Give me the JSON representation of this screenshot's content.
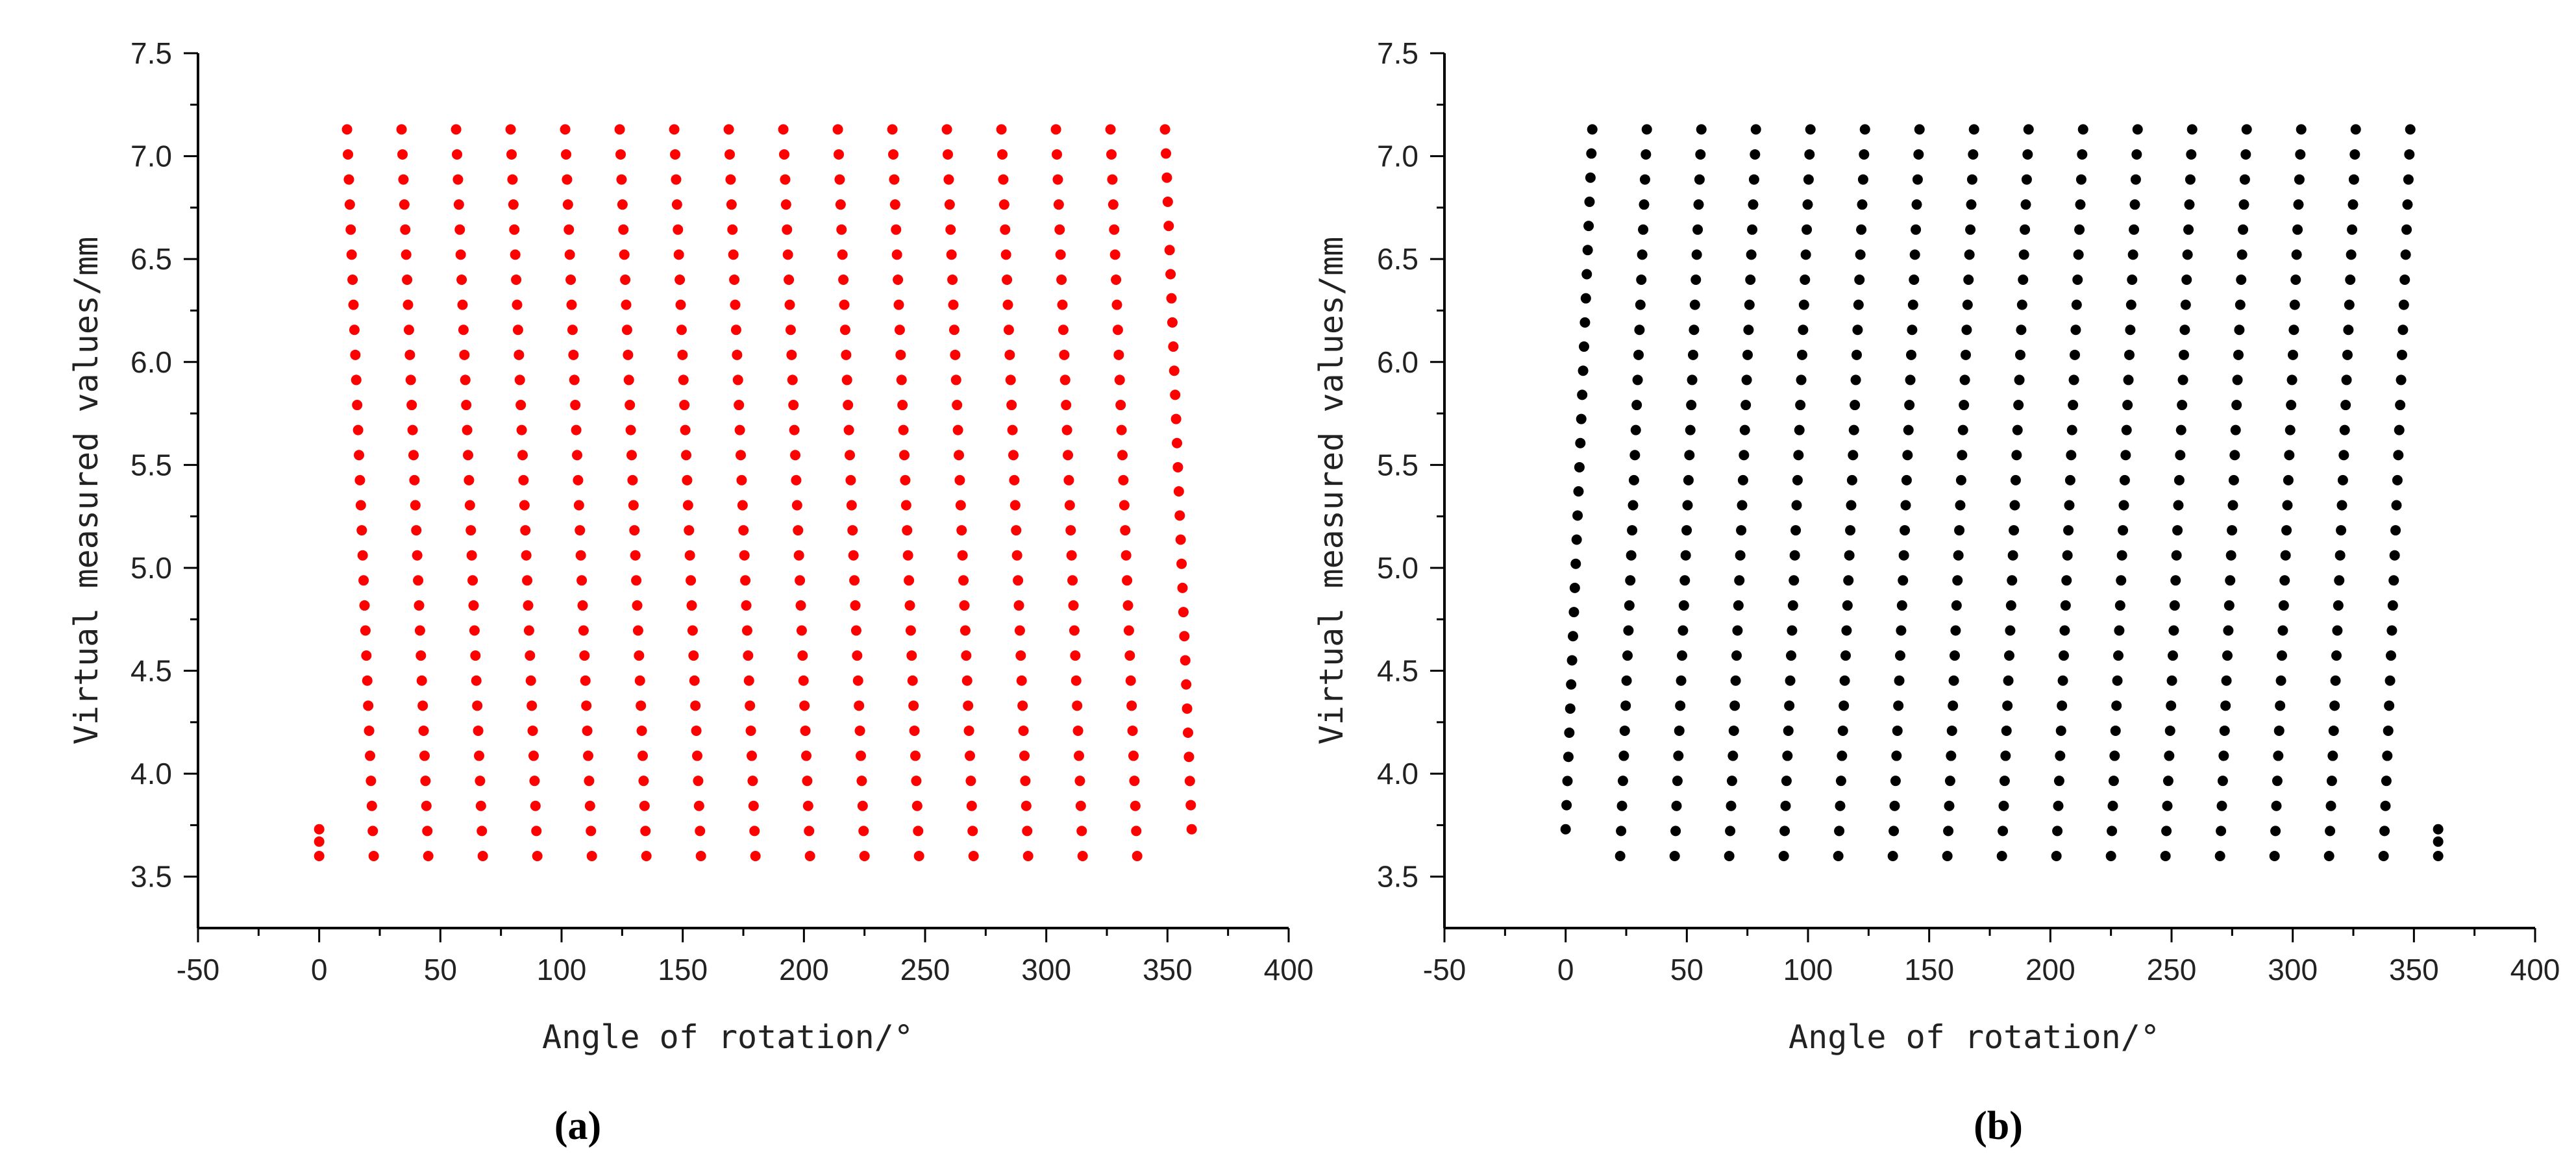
{
  "chart_data": [
    {
      "type": "scatter",
      "panel_label": "(a)",
      "xlabel": "Angle of rotation/°",
      "ylabel": "Virtual measured values/mm",
      "xlim": [
        -50,
        400
      ],
      "ylim": [
        3.25,
        7.5
      ],
      "xticks": [
        "-50",
        "0",
        "50",
        "100",
        "150",
        "200",
        "250",
        "300",
        "350",
        "400"
      ],
      "yticks": [
        "3.5",
        "4.0",
        "4.5",
        "5.0",
        "5.5",
        "6.0",
        "6.5",
        "7.0",
        "7.5"
      ],
      "color": "#ff0000",
      "series": [
        {
          "pattern": "sweep",
          "y_range": [
            3.6,
            7.13
          ],
          "points_per_sweep": 30,
          "sweeps": [
            {
              "x_low": 22.5,
              "x_high": 11.5
            },
            {
              "x_low": 45,
              "x_high": 34
            },
            {
              "x_low": 67.5,
              "x_high": 56.5
            },
            {
              "x_low": 90,
              "x_high": 79
            },
            {
              "x_low": 112.5,
              "x_high": 101.5
            },
            {
              "x_low": 135,
              "x_high": 124
            },
            {
              "x_low": 157.5,
              "x_high": 146.5
            },
            {
              "x_low": 180,
              "x_high": 169
            },
            {
              "x_low": 202.5,
              "x_high": 191.5
            },
            {
              "x_low": 225,
              "x_high": 214
            },
            {
              "x_low": 247.5,
              "x_high": 236.5
            },
            {
              "x_low": 270,
              "x_high": 259
            },
            {
              "x_low": 292.5,
              "x_high": 281.5
            },
            {
              "x_low": 315,
              "x_high": 304
            },
            {
              "x_low": 337.5,
              "x_high": 326.5
            },
            {
              "x_low": 360,
              "x_high": 349,
              "y_low": 3.73
            }
          ],
          "extra_points": [
            [
              0,
              3.6
            ],
            [
              0,
              3.67
            ],
            [
              0,
              3.73
            ]
          ]
        }
      ]
    },
    {
      "type": "scatter",
      "panel_label": "(b)",
      "xlabel": "Angle of rotation/°",
      "ylabel": "Virtual measured values/mm",
      "xlim": [
        -50,
        400
      ],
      "ylim": [
        3.25,
        7.5
      ],
      "xticks": [
        "-50",
        "0",
        "50",
        "100",
        "150",
        "200",
        "250",
        "300",
        "350",
        "400"
      ],
      "yticks": [
        "3.5",
        "4.0",
        "4.5",
        "5.0",
        "5.5",
        "6.0",
        "6.5",
        "7.0",
        "7.5"
      ],
      "color": "#000000",
      "series": [
        {
          "pattern": "sweep",
          "y_range": [
            3.6,
            7.13
          ],
          "points_per_sweep": 30,
          "sweeps": [
            {
              "x_low": 0,
              "x_high": 11,
              "y_low": 3.73
            },
            {
              "x_low": 22.5,
              "x_high": 33.5
            },
            {
              "x_low": 45,
              "x_high": 56
            },
            {
              "x_low": 67.5,
              "x_high": 78.5
            },
            {
              "x_low": 90,
              "x_high": 101
            },
            {
              "x_low": 112.5,
              "x_high": 123.5
            },
            {
              "x_low": 135,
              "x_high": 146
            },
            {
              "x_low": 157.5,
              "x_high": 168.5
            },
            {
              "x_low": 180,
              "x_high": 191
            },
            {
              "x_low": 202.5,
              "x_high": 213.5
            },
            {
              "x_low": 225,
              "x_high": 236
            },
            {
              "x_low": 247.5,
              "x_high": 258.5
            },
            {
              "x_low": 270,
              "x_high": 281
            },
            {
              "x_low": 292.5,
              "x_high": 303.5
            },
            {
              "x_low": 315,
              "x_high": 326
            },
            {
              "x_low": 337.5,
              "x_high": 348.5
            }
          ],
          "extra_points": [
            [
              360,
              3.6
            ],
            [
              360,
              3.67
            ],
            [
              360,
              3.73
            ]
          ]
        }
      ]
    }
  ]
}
